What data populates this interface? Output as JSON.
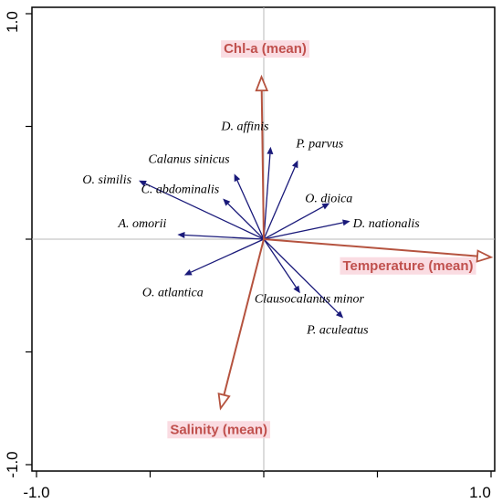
{
  "chart_data": {
    "type": "scatter",
    "subtype": "rda-biplot",
    "title": "",
    "xlabel": "",
    "ylabel": "",
    "xlim": [
      -1.0,
      1.0
    ],
    "ylim": [
      -1.0,
      1.0
    ],
    "x_tick_labels": [
      "-1.0",
      "1.0"
    ],
    "y_tick_labels": [
      "1.0",
      "-1.0"
    ],
    "grid": false,
    "zero_lines": true,
    "colors": {
      "species_arrow": "#1a1a7a",
      "env_arrow": "#b5533f",
      "env_label": "#c0504d",
      "env_label_bg": "#fadce2",
      "zero_line": "#b8b8b8",
      "frame": "#000000"
    },
    "species_vectors": [
      {
        "label": "D. affinis",
        "x": 0.03,
        "y": 0.41
      },
      {
        "label": "P. parvus",
        "x": 0.15,
        "y": 0.35
      },
      {
        "label": "Calanus sinicus",
        "x": -0.13,
        "y": 0.29
      },
      {
        "label": "C. abdominalis",
        "x": -0.18,
        "y": 0.18
      },
      {
        "label": "O. dioica",
        "x": 0.29,
        "y": 0.16
      },
      {
        "label": "O. similis",
        "x": -0.55,
        "y": 0.26
      },
      {
        "label": "D. nationalis",
        "x": 0.38,
        "y": 0.08
      },
      {
        "label": "A. omorii",
        "x": -0.38,
        "y": 0.02
      },
      {
        "label": "O. atlantica",
        "x": -0.35,
        "y": -0.16
      },
      {
        "label": "Clausocalanus minor",
        "x": 0.16,
        "y": -0.24
      },
      {
        "label": "P. aculeatus",
        "x": 0.35,
        "y": -0.35
      }
    ],
    "environment_vectors": [
      {
        "label": "Chl-a (mean)",
        "x": -0.01,
        "y": 0.72
      },
      {
        "label": "Temperature (mean)",
        "x": 1.0,
        "y": -0.08
      },
      {
        "label": "Salinity (mean)",
        "x": -0.19,
        "y": -0.75
      }
    ]
  }
}
